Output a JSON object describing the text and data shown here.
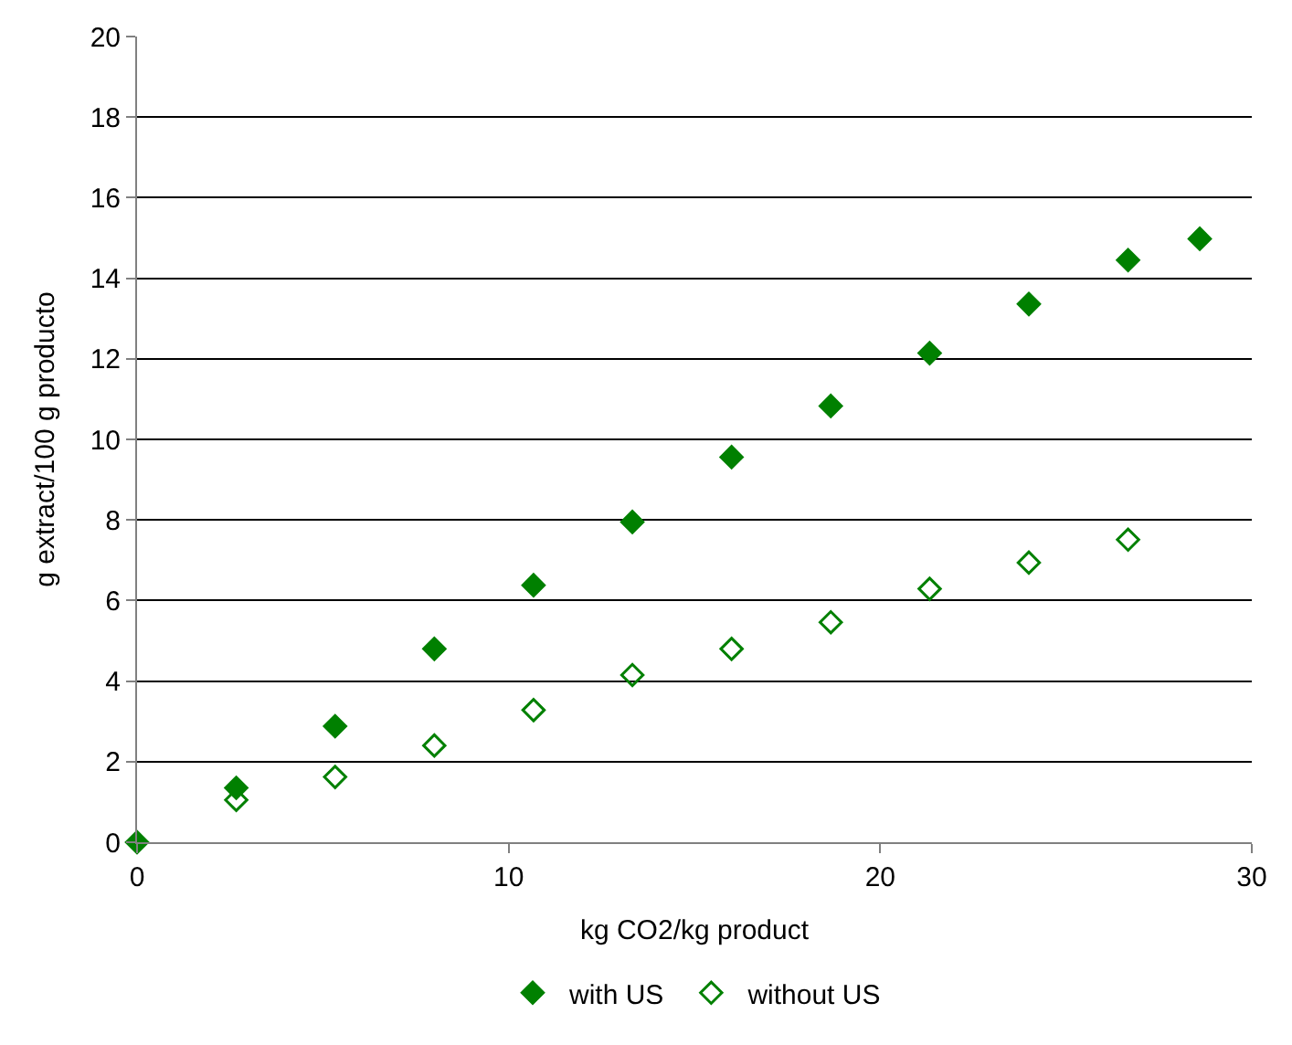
{
  "chart_data": {
    "type": "scatter",
    "xlabel": "kg CO2/kg product",
    "ylabel": "g extract/100 g producto",
    "xlim": [
      0,
      30
    ],
    "xticks": [
      0,
      10,
      20,
      30
    ],
    "ylim": [
      0,
      20
    ],
    "yticks": [
      0,
      2,
      4,
      6,
      8,
      10,
      12,
      14,
      16,
      18,
      20
    ],
    "grid": "y",
    "legend": "bottom",
    "marker": "diamond",
    "series": [
      {
        "name": "with US",
        "color": "#008000",
        "x": [
          0,
          2.67,
          5.33,
          8,
          10.67,
          13.33,
          16,
          18.67,
          21.33,
          24,
          26.67,
          28.6
        ],
        "values": [
          0,
          1.35,
          2.88,
          4.8,
          6.38,
          7.95,
          9.56,
          10.83,
          12.14,
          13.36,
          14.45,
          14.98
        ]
      },
      {
        "name": "without US",
        "color": "#008000",
        "marker": "diamond-open",
        "x": [
          2.67,
          5.33,
          8,
          10.67,
          13.33,
          16,
          18.67,
          21.33,
          24,
          26.67
        ],
        "values": [
          1.05,
          1.62,
          2.4,
          3.28,
          4.15,
          4.8,
          5.46,
          6.29,
          6.94,
          7.51
        ]
      }
    ]
  }
}
